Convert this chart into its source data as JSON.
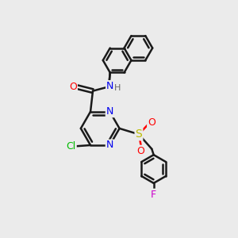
{
  "bg_color": "#ebebeb",
  "bond_color": "#1a1a1a",
  "bond_width": 1.8,
  "atom_colors": {
    "N": "#0000ee",
    "O": "#ff0000",
    "Cl": "#00bb00",
    "S": "#bbbb00",
    "F": "#cc00cc",
    "H": "#666666",
    "C": "#1a1a1a"
  },
  "figsize": [
    3.0,
    3.0
  ],
  "dpi": 100
}
